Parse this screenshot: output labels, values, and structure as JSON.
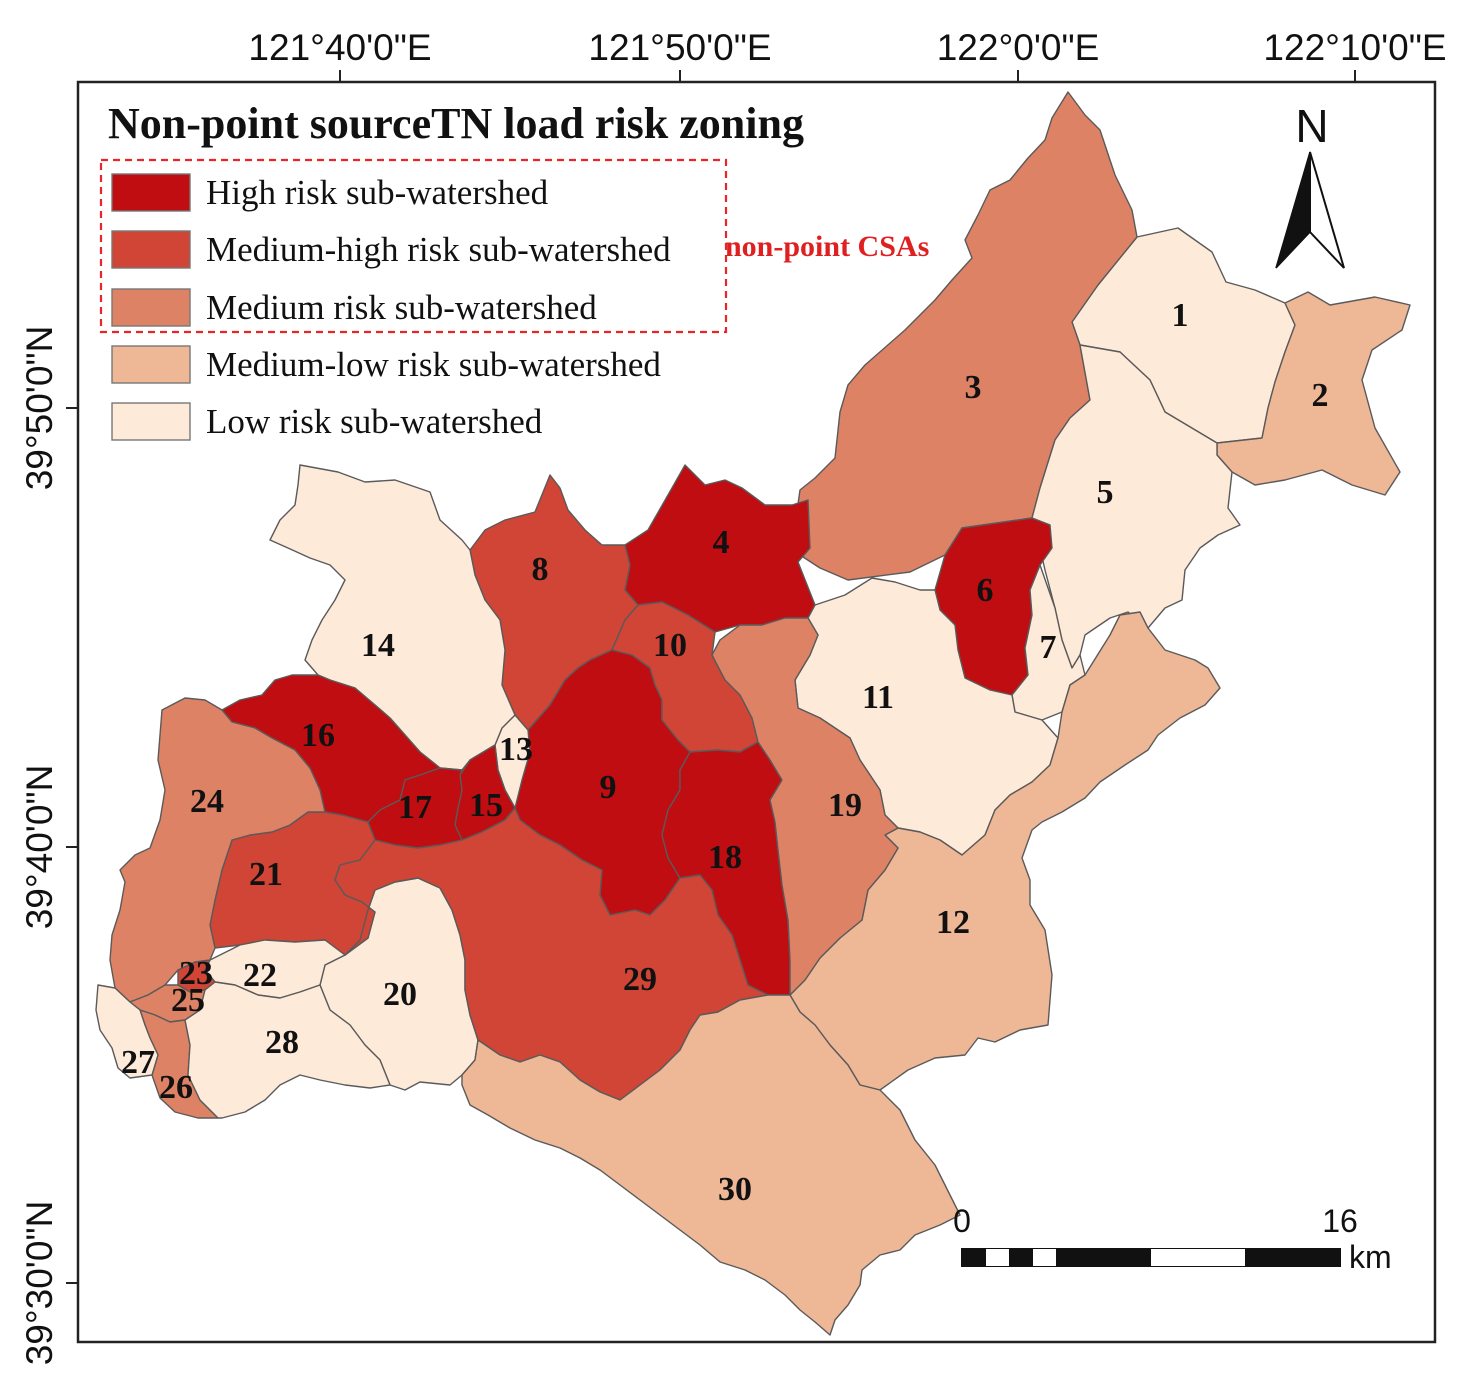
{
  "title": "Non-point sourceTN load risk zoning",
  "colors": {
    "high": "#c00d11",
    "medium_high": "#d04535",
    "medium": "#de8266",
    "medium_low": "#eeb796",
    "low": "#feead9",
    "csa_box": "#e8262a"
  },
  "legend": {
    "items": [
      {
        "label": "High risk sub-watershed",
        "class": "high"
      },
      {
        "label": "Medium-high risk sub-watershed",
        "class": "medium_high"
      },
      {
        "label": "Medium risk sub-watershed",
        "class": "medium"
      },
      {
        "label": "Medium-low risk sub-watershed",
        "class": "medium_low"
      },
      {
        "label": "Low risk sub-watershed",
        "class": "low"
      }
    ],
    "csa_label": "non-point CSAs"
  },
  "axes": {
    "lon_labels": [
      "121°40'0\"E",
      "121°50'0\"E",
      "122°0'0\"E",
      "122°10'0\"E"
    ],
    "lat_labels": [
      "39°50'0\"N",
      "39°40'0\"N",
      "39°30'0\"N"
    ]
  },
  "north_arrow": {
    "label": "N",
    "icon": "north-arrow-icon"
  },
  "scale_bar": {
    "start": "0",
    "end": "16",
    "unit": "km"
  },
  "subwatersheds": [
    {
      "id": "1",
      "risk": "low"
    },
    {
      "id": "2",
      "risk": "medium_low"
    },
    {
      "id": "3",
      "risk": "medium"
    },
    {
      "id": "4",
      "risk": "high"
    },
    {
      "id": "5",
      "risk": "low"
    },
    {
      "id": "6",
      "risk": "high"
    },
    {
      "id": "7",
      "risk": "low"
    },
    {
      "id": "8",
      "risk": "medium_high"
    },
    {
      "id": "9",
      "risk": "high"
    },
    {
      "id": "10",
      "risk": "medium_high"
    },
    {
      "id": "11",
      "risk": "low"
    },
    {
      "id": "12",
      "risk": "medium_low"
    },
    {
      "id": "13",
      "risk": "low"
    },
    {
      "id": "14",
      "risk": "low"
    },
    {
      "id": "15",
      "risk": "high"
    },
    {
      "id": "16",
      "risk": "high"
    },
    {
      "id": "17",
      "risk": "high"
    },
    {
      "id": "18",
      "risk": "high"
    },
    {
      "id": "19",
      "risk": "medium"
    },
    {
      "id": "20",
      "risk": "low"
    },
    {
      "id": "21",
      "risk": "medium_high"
    },
    {
      "id": "22",
      "risk": "low"
    },
    {
      "id": "23",
      "risk": "medium_high"
    },
    {
      "id": "24",
      "risk": "medium"
    },
    {
      "id": "25",
      "risk": "medium"
    },
    {
      "id": "26",
      "risk": "medium"
    },
    {
      "id": "27",
      "risk": "low"
    },
    {
      "id": "28",
      "risk": "low"
    },
    {
      "id": "29",
      "risk": "medium_high"
    },
    {
      "id": "30",
      "risk": "medium_low"
    }
  ]
}
